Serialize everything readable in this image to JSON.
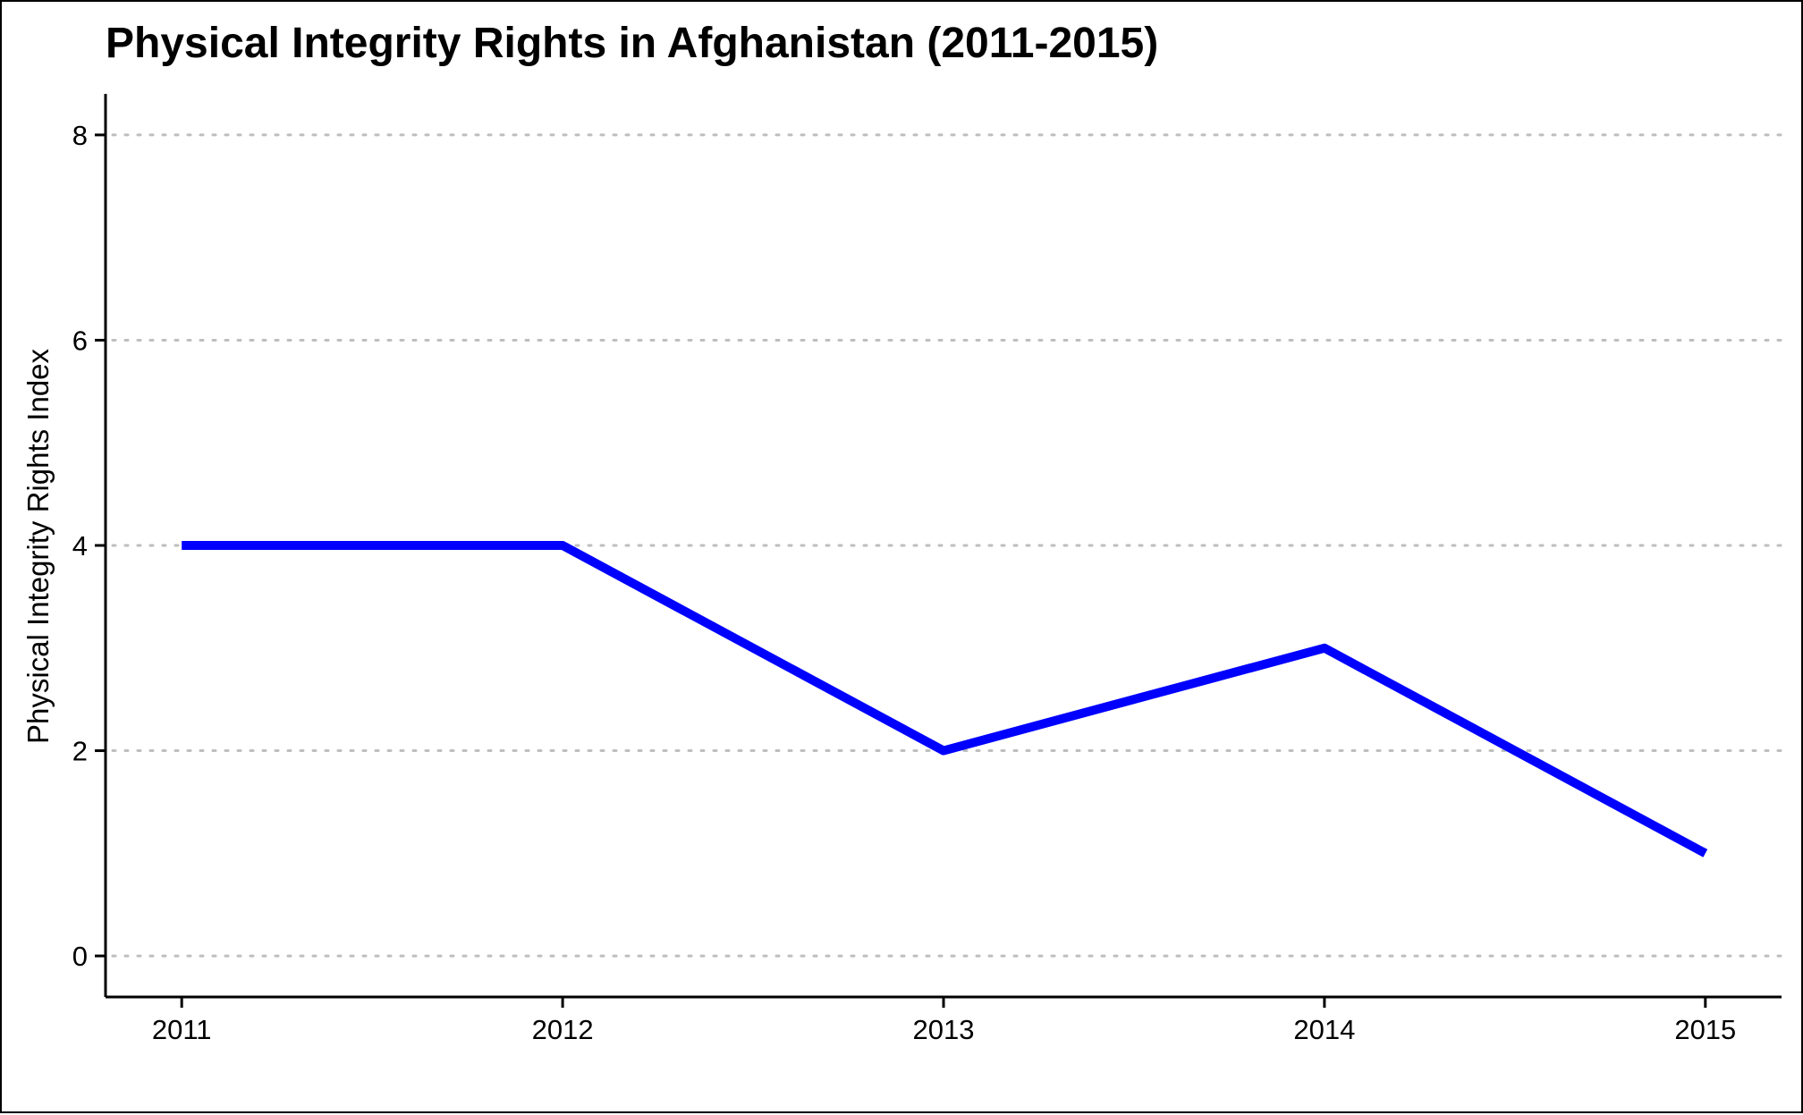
{
  "chart_data": {
    "type": "line",
    "title": "Physical Integrity Rights in Afghanistan (2011-2015)",
    "xlabel": "",
    "ylabel": "Physical Integrity Rights Index",
    "x": [
      2011,
      2012,
      2013,
      2014,
      2015
    ],
    "x_tick_labels": [
      "2011",
      "2012",
      "2013",
      "2014",
      "2015"
    ],
    "y_ticks": [
      0,
      2,
      4,
      6,
      8
    ],
    "y_tick_labels": [
      "0",
      "2",
      "4",
      "6",
      "8"
    ],
    "ylim": [
      -0.4,
      8.4
    ],
    "xlim": [
      2010.8,
      2015.2
    ],
    "series": [
      {
        "values": [
          4,
          4,
          2,
          3,
          1
        ],
        "color": "#0000FF"
      }
    ],
    "grid": "horizontal-dotted",
    "grid_color": "#BEBEBE",
    "legend": "none"
  }
}
